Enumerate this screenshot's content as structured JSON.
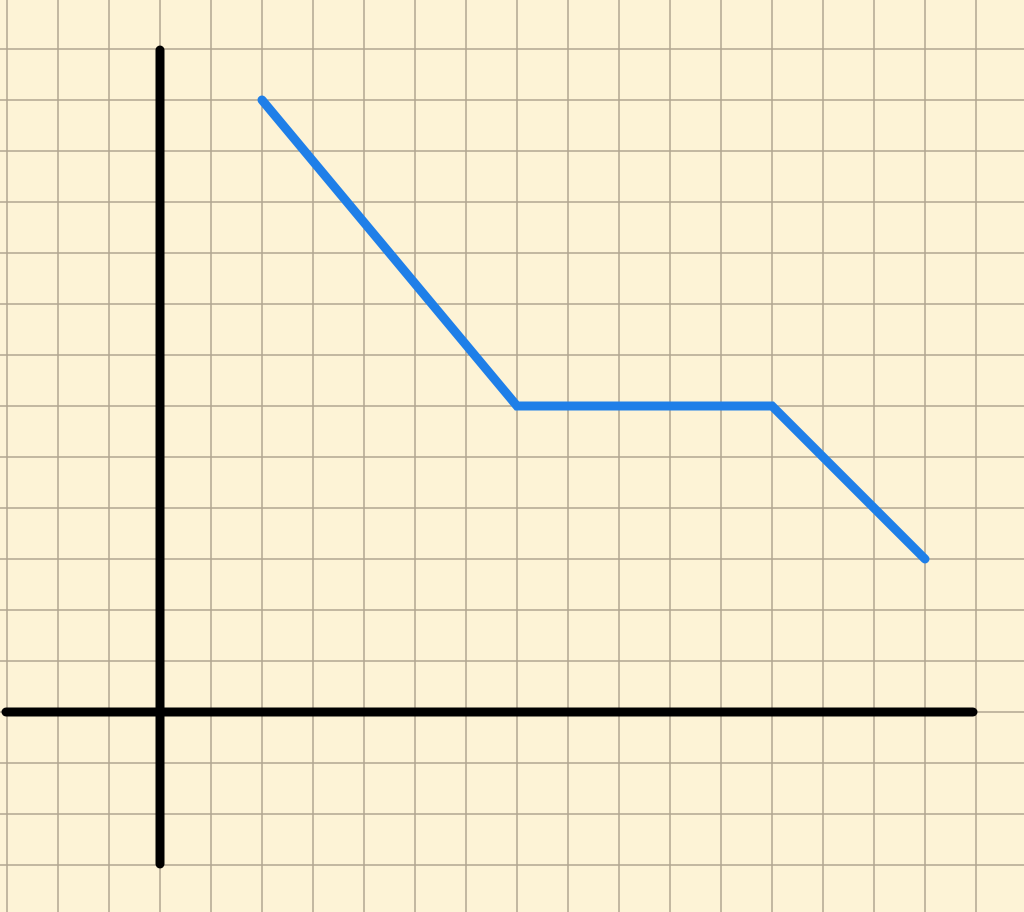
{
  "chart_data": {
    "type": "line",
    "title": "",
    "xlabel": "",
    "ylabel": "",
    "grid": true,
    "x": [
      2,
      7,
      12,
      15
    ],
    "series": [
      {
        "values": [
          12,
          6,
          6,
          3
        ]
      }
    ],
    "xlim": [
      -3,
      16
    ],
    "ylim": [
      -3,
      13
    ]
  },
  "colors": {
    "paper": "#fdf3d6",
    "grid": "#b0a58f",
    "axes": "#000000",
    "line": "#1f7fe8"
  }
}
